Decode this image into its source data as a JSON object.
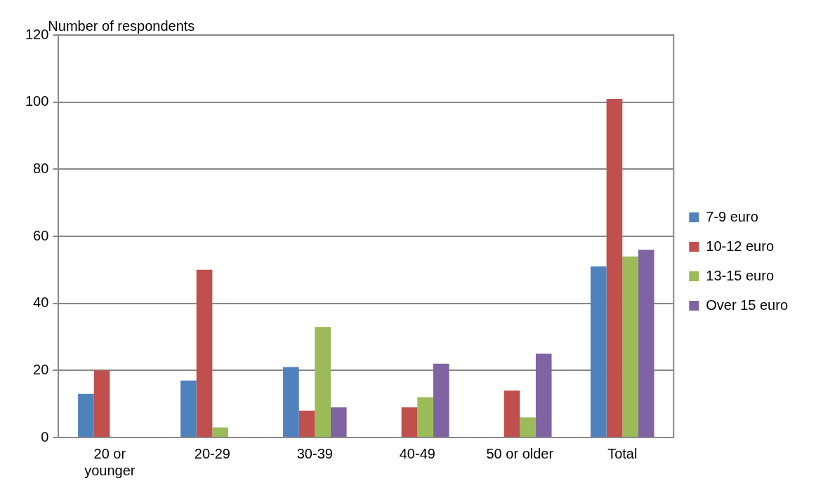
{
  "chart_data": {
    "type": "bar",
    "ylabel": "Number of respondents",
    "categories": [
      "20 or younger",
      "20-29",
      "30-39",
      "40-49",
      "50 or older",
      "Total"
    ],
    "series": [
      {
        "name": "7-9 euro",
        "color": "#4f81bd",
        "values": [
          13,
          17,
          21,
          0,
          0,
          51
        ]
      },
      {
        "name": "10-12 euro",
        "color": "#c0504d",
        "values": [
          20,
          50,
          8,
          9,
          14,
          101
        ]
      },
      {
        "name": "13-15 euro",
        "color": "#9bbb59",
        "values": [
          0,
          3,
          33,
          12,
          6,
          54
        ]
      },
      {
        "name": "Over 15 euro",
        "color": "#8064a2",
        "values": [
          0,
          0,
          9,
          22,
          25,
          56
        ]
      }
    ],
    "ylim": [
      0,
      120
    ],
    "yticks": [
      0,
      20,
      40,
      60,
      80,
      100,
      120
    ],
    "grid": "y",
    "legend": "right"
  }
}
